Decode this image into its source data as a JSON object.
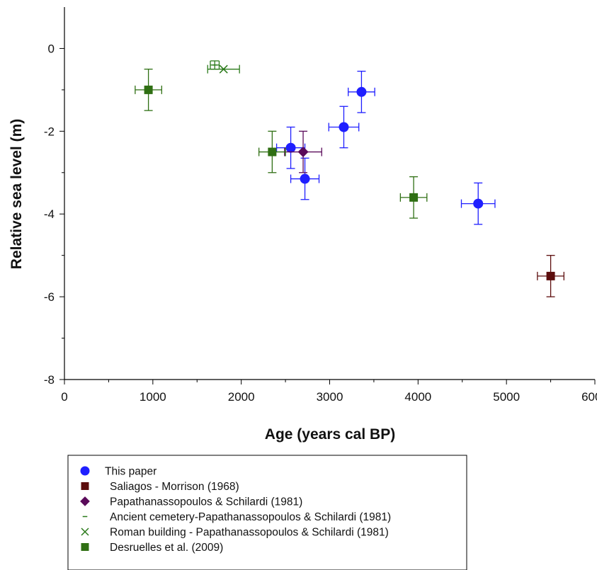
{
  "chart_data": {
    "type": "scatter",
    "xlabel": "Age (years cal BP)",
    "ylabel": "Relative sea level (m)",
    "xlim": [
      0,
      6000
    ],
    "ylim": [
      -8,
      1
    ],
    "xticks": [
      0,
      1000,
      2000,
      3000,
      4000,
      5000,
      6000
    ],
    "yticks": [
      -8,
      -6,
      -4,
      -2,
      0
    ],
    "grid": false,
    "legend_position": "bottom",
    "series": [
      {
        "name": "This paper",
        "marker": "circle",
        "color": "#1f1fff",
        "points": [
          {
            "x": 2560,
            "y": -2.4,
            "xerr": 160,
            "yerr": 0.5
          },
          {
            "x": 2720,
            "y": -3.15,
            "xerr": 160,
            "yerr": 0.5
          },
          {
            "x": 3160,
            "y": -1.9,
            "xerr": 170,
            "yerr": 0.5
          },
          {
            "x": 3360,
            "y": -1.05,
            "xerr": 150,
            "yerr": 0.5
          },
          {
            "x": 4680,
            "y": -3.75,
            "xerr": 190,
            "yerr": 0.5
          }
        ]
      },
      {
        "name": "Saliagos - Morrison (1968)",
        "marker": "square",
        "color": "#5c0d0d",
        "points": [
          {
            "x": 5500,
            "y": -5.5,
            "xerr": 150,
            "yerr": 0.5
          }
        ]
      },
      {
        "name": "Papathanassopoulos & Schilardi (1981)",
        "marker": "diamond",
        "color": "#5a0a5a",
        "points": [
          {
            "x": 2700,
            "y": -2.5,
            "xerr": 210,
            "yerr": 0.5
          }
        ]
      },
      {
        "name": "Ancient cemetery-Papathanassopoulos & Schilardi (1981)",
        "marker": "dash",
        "color": "#2a7a1a",
        "points": [
          {
            "x": 1700,
            "y": -0.4,
            "xerr": 50,
            "yerr": 0.1
          }
        ]
      },
      {
        "name": "Roman building - Papathanassopoulos & Schilardi (1981)",
        "marker": "x",
        "color": "#2a7a1a",
        "points": [
          {
            "x": 1800,
            "y": -0.5,
            "xerr": 180,
            "yerr": 0
          }
        ]
      },
      {
        "name": "Desruelles et al. (2009)",
        "marker": "square",
        "color": "#2f6f13",
        "points": [
          {
            "x": 950,
            "y": -1.0,
            "xerr": 150,
            "yerr": 0.5
          },
          {
            "x": 2350,
            "y": -2.5,
            "xerr": 150,
            "yerr": 0.5
          },
          {
            "x": 3950,
            "y": -3.6,
            "xerr": 150,
            "yerr": 0.5
          }
        ]
      }
    ]
  }
}
